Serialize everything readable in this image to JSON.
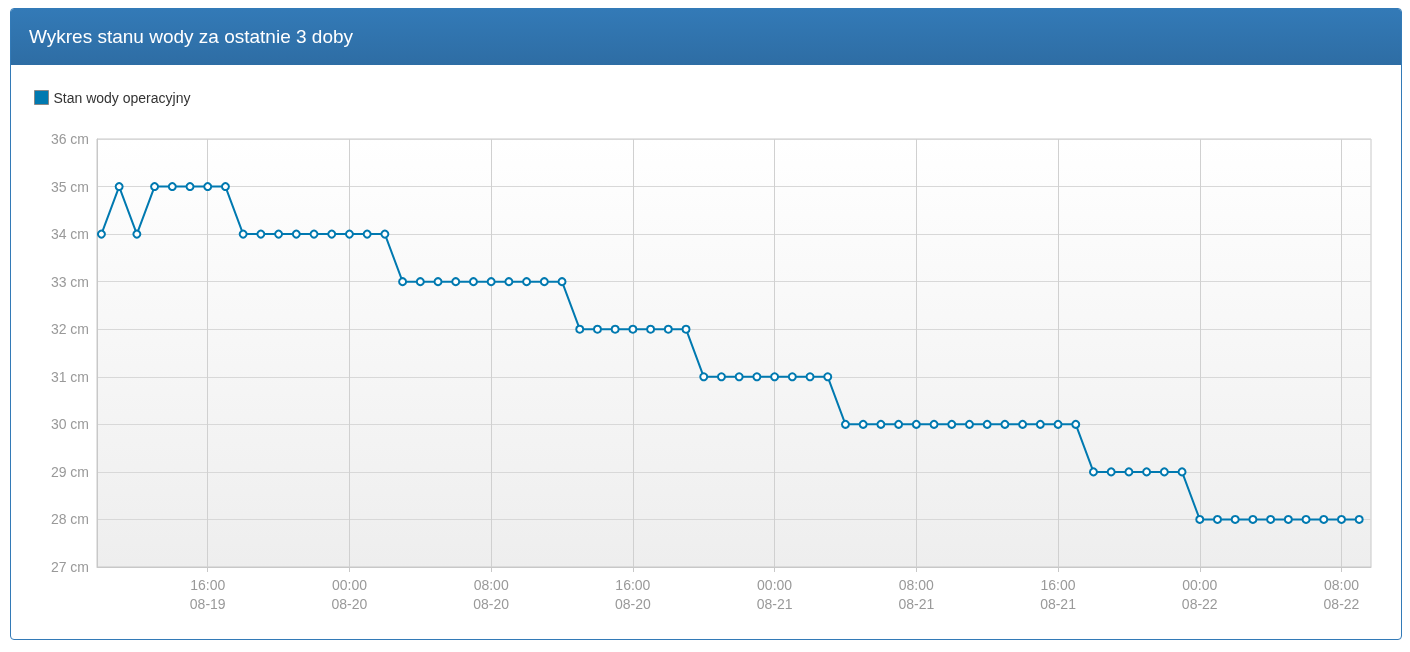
{
  "chart_data": {
    "type": "line",
    "title": "Wykres stanu wody za ostatnie 3 doby",
    "x": [
      "--08-19T10:00",
      "--08-19T11:00",
      "--08-19T12:00",
      "--08-19T13:00",
      "--08-19T14:00",
      "--08-19T15:00",
      "--08-19T16:00",
      "--08-19T17:00",
      "--08-19T18:00",
      "--08-19T19:00",
      "--08-19T20:00",
      "--08-19T21:00",
      "--08-19T22:00",
      "--08-19T23:00",
      "--08-20T00:00",
      "--08-20T01:00",
      "--08-20T02:00",
      "--08-20T03:00",
      "--08-20T04:00",
      "--08-20T05:00",
      "--08-20T06:00",
      "--08-20T07:00",
      "--08-20T08:00",
      "--08-20T09:00",
      "--08-20T10:00",
      "--08-20T11:00",
      "--08-20T12:00",
      "--08-20T13:00",
      "--08-20T14:00",
      "--08-20T15:00",
      "--08-20T16:00",
      "--08-20T17:00",
      "--08-20T18:00",
      "--08-20T19:00",
      "--08-20T20:00",
      "--08-20T21:00",
      "--08-20T22:00",
      "--08-20T23:00",
      "--08-21T00:00",
      "--08-21T01:00",
      "--08-21T02:00",
      "--08-21T03:00",
      "--08-21T04:00",
      "--08-21T05:00",
      "--08-21T06:00",
      "--08-21T07:00",
      "--08-21T08:00",
      "--08-21T09:00",
      "--08-21T10:00",
      "--08-21T11:00",
      "--08-21T12:00",
      "--08-21T13:00",
      "--08-21T14:00",
      "--08-21T15:00",
      "--08-21T16:00",
      "--08-21T17:00",
      "--08-21T18:00",
      "--08-21T19:00",
      "--08-21T20:00",
      "--08-21T21:00",
      "--08-21T22:00",
      "--08-21T23:00",
      "--08-22T00:00",
      "--08-22T01:00",
      "--08-22T02:00",
      "--08-22T03:00",
      "--08-22T04:00",
      "--08-22T05:00",
      "--08-22T06:00",
      "--08-22T07:00",
      "--08-22T08:00",
      "--08-22T09:00"
    ],
    "series": [
      {
        "name": "Stan wody operacyjny",
        "color": "#0079b0",
        "values": [
          34,
          35,
          34,
          35,
          35,
          35,
          35,
          35,
          34,
          34,
          34,
          34,
          34,
          34,
          34,
          34,
          34,
          33,
          33,
          33,
          33,
          33,
          33,
          33,
          33,
          33,
          33,
          32,
          32,
          32,
          32,
          32,
          32,
          32,
          31,
          31,
          31,
          31,
          31,
          31,
          31,
          31,
          30,
          30,
          30,
          30,
          30,
          30,
          30,
          30,
          30,
          30,
          30,
          30,
          30,
          30,
          29,
          29,
          29,
          29,
          29,
          29,
          28,
          28,
          28,
          28,
          28,
          28,
          28,
          28,
          28,
          28
        ]
      }
    ],
    "xlim": [
      "--08-19T09:45",
      "--08-22T09:40"
    ],
    "xticks": [
      {
        "value": "--08-19T16:00",
        "label": "16:00\n08-19"
      },
      {
        "value": "--08-20T00:00",
        "label": "00:00\n08-20"
      },
      {
        "value": "--08-20T08:00",
        "label": "08:00\n08-20"
      },
      {
        "value": "--08-20T16:00",
        "label": "16:00\n08-20"
      },
      {
        "value": "--08-21T00:00",
        "label": "00:00\n08-21"
      },
      {
        "value": "--08-21T08:00",
        "label": "08:00\n08-21"
      },
      {
        "value": "--08-21T16:00",
        "label": "16:00\n08-21"
      },
      {
        "value": "--08-22T00:00",
        "label": "00:00\n08-22"
      },
      {
        "value": "--08-22T08:00",
        "label": "08:00\n08-22"
      }
    ],
    "ylim": [
      27,
      36
    ],
    "yticks": [
      {
        "value": 27,
        "label": "27 cm"
      },
      {
        "value": 28,
        "label": "28 cm"
      },
      {
        "value": 29,
        "label": "29 cm"
      },
      {
        "value": 30,
        "label": "30 cm"
      },
      {
        "value": 31,
        "label": "31 cm"
      },
      {
        "value": 32,
        "label": "32 cm"
      },
      {
        "value": 33,
        "label": "33 cm"
      },
      {
        "value": 34,
        "label": "34 cm"
      },
      {
        "value": 35,
        "label": "35 cm"
      },
      {
        "value": 36,
        "label": "36 cm"
      }
    ],
    "grid": true,
    "legend": "top left",
    "marker": "circle",
    "line_style": "solid"
  }
}
